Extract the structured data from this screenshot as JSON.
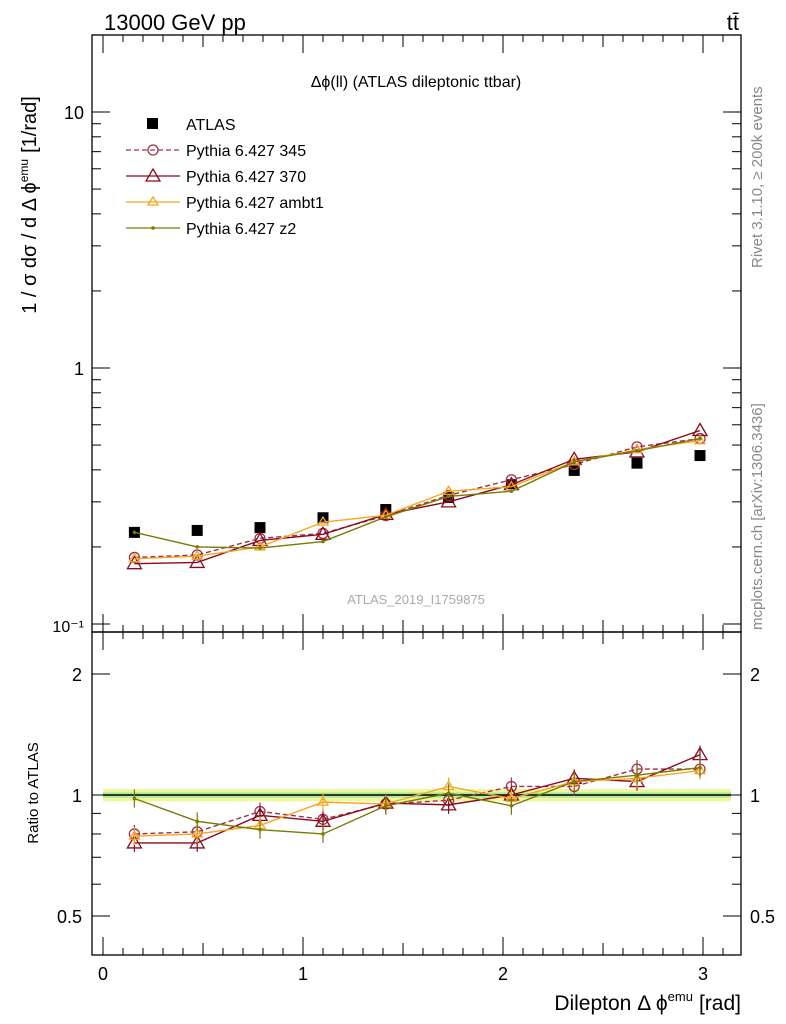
{
  "header": {
    "energy_label": "13000 GeV pp",
    "process_label": "tt̄",
    "right_label_top": "Rivet 3.1.10, ≥ 200k events",
    "right_label_bottom": "mcplots.cern.ch [arXiv:1306.3436]",
    "analysis_id": "ATLAS_2019_I1759875"
  },
  "chart_data": [
    {
      "type": "scatter",
      "title": "Δϕ(ll) (ATLAS dileptonic ttbar)",
      "ylabel": "1 / σ  dσ / d Δ ϕ",
      "ylabel_sup": "emu",
      "ylabel_unit": "[1/rad]",
      "yscale": "log",
      "ylim": [
        0.095,
        20
      ],
      "xlim": [
        -0.05,
        3.2
      ],
      "ytick_labels": [
        "10⁻¹",
        "1",
        "10"
      ],
      "legend_position": "top-left",
      "x": [
        0.157,
        0.471,
        0.785,
        1.1,
        1.414,
        1.728,
        2.042,
        2.356,
        2.67,
        2.985
      ],
      "series": [
        {
          "name": "ATLAS",
          "color": "#000000",
          "marker": "square",
          "values": [
            0.228,
            0.232,
            0.238,
            0.26,
            0.28,
            0.312,
            0.35,
            0.398,
            0.425,
            0.455
          ]
        },
        {
          "name": "Pythia 6.427 345",
          "color": "#a0304c",
          "marker": "circle",
          "dash": true,
          "values": [
            0.182,
            0.186,
            0.216,
            0.226,
            0.265,
            0.318,
            0.366,
            0.42,
            0.492,
            0.53
          ]
        },
        {
          "name": "Pythia 6.427 370",
          "color": "#8b0a1e",
          "marker": "triangle",
          "values": [
            0.172,
            0.174,
            0.212,
            0.224,
            0.268,
            0.3,
            0.35,
            0.44,
            0.47,
            0.57
          ]
        },
        {
          "name": "Pythia 6.427 ambt1",
          "color": "#f5a623",
          "marker": "triangle-small",
          "values": [
            0.18,
            0.184,
            0.2,
            0.25,
            0.266,
            0.33,
            0.344,
            0.43,
            0.48,
            0.52
          ]
        },
        {
          "name": "Pythia 6.427 z2",
          "color": "#7a7a00",
          "marker": "dot",
          "values": [
            0.228,
            0.2,
            0.198,
            0.21,
            0.262,
            0.315,
            0.33,
            0.43,
            0.475,
            0.53
          ]
        }
      ]
    },
    {
      "type": "scatter",
      "ylabel": "Ratio to ATLAS",
      "xlabel": "Dilepton Δ ϕ",
      "xlabel_sup": "emu",
      "xlabel_unit": "[rad]",
      "ylim": [
        0.42,
        2.5
      ],
      "xlim": [
        -0.05,
        3.2
      ],
      "ytick_labels": [
        "0.5",
        "1",
        "2"
      ],
      "xtick_labels": [
        "0",
        "1",
        "2",
        "3"
      ],
      "reference_line": 1,
      "x": [
        0.157,
        0.471,
        0.785,
        1.1,
        1.414,
        1.728,
        2.042,
        2.356,
        2.67,
        2.985
      ],
      "series": [
        {
          "name": "Pythia 6.427 345",
          "values": [
            0.8,
            0.81,
            0.91,
            0.87,
            0.95,
            0.97,
            1.05,
            1.05,
            1.16,
            1.16
          ]
        },
        {
          "name": "Pythia 6.427 370",
          "values": [
            0.76,
            0.76,
            0.89,
            0.86,
            0.955,
            0.945,
            1.0,
            1.1,
            1.08,
            1.26
          ]
        },
        {
          "name": "Pythia 6.427 ambt1",
          "values": [
            0.79,
            0.8,
            0.84,
            0.96,
            0.95,
            1.05,
            0.98,
            1.08,
            1.1,
            1.15
          ]
        },
        {
          "name": "Pythia 6.427 z2",
          "values": [
            0.98,
            0.86,
            0.82,
            0.8,
            0.94,
            1.01,
            0.94,
            1.08,
            1.12,
            1.17
          ]
        }
      ]
    }
  ]
}
